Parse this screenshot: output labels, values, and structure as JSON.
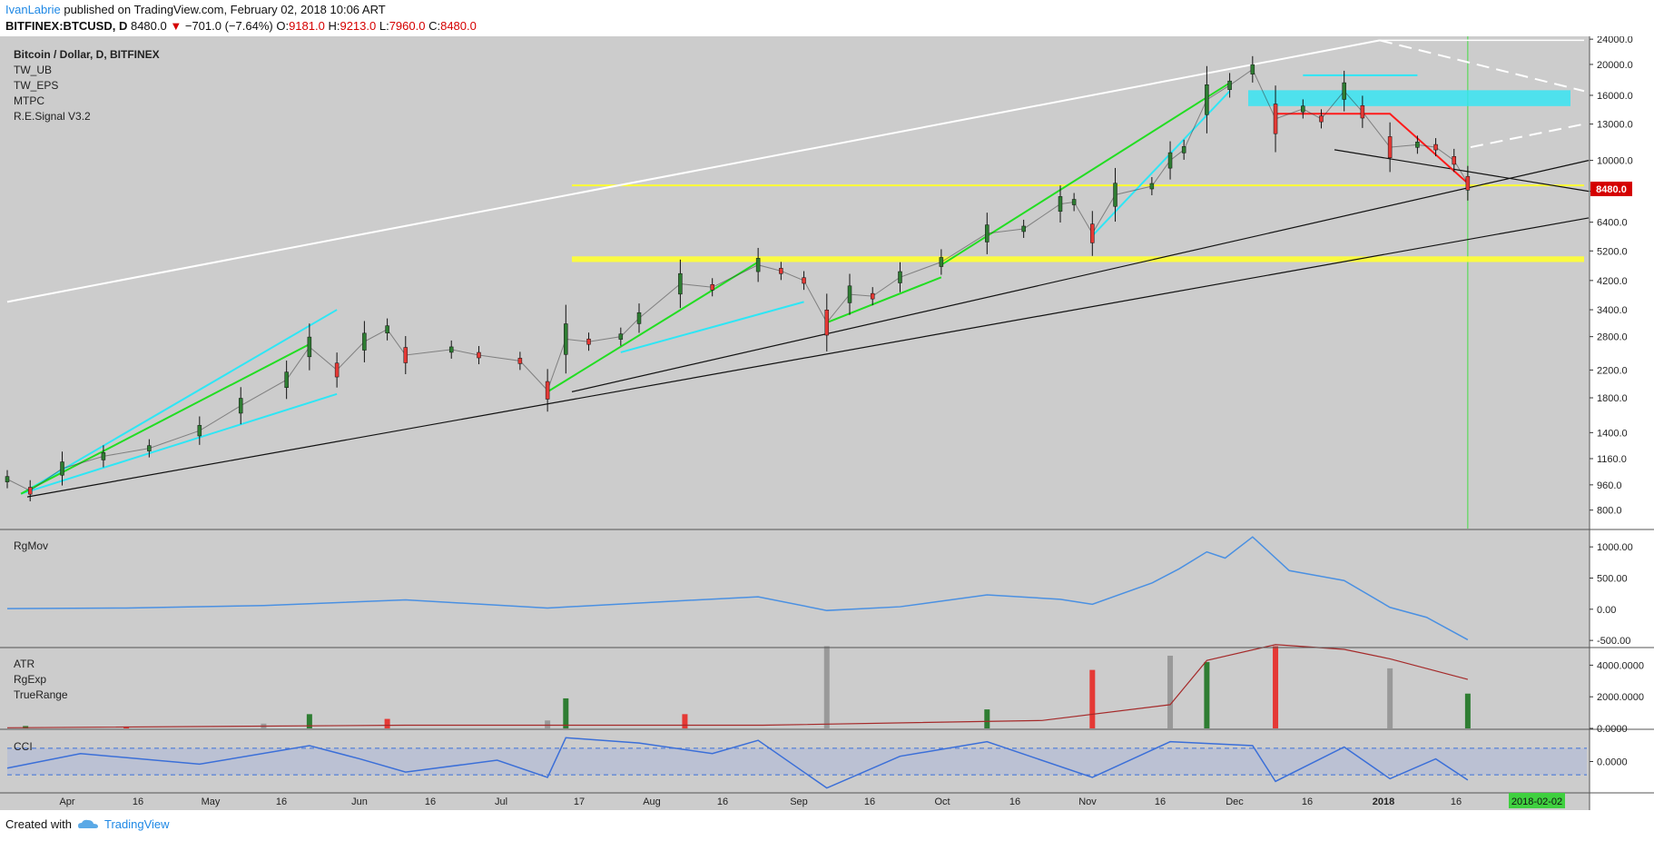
{
  "header": {
    "author": "IvanLabrie",
    "published_text": "published on TradingView.com, February 02, 2018 10:06 ART",
    "symbol": "BITFINEX:BTCUSD, D",
    "last": "8480.0",
    "change": "−701.0 (−7.64%)",
    "o_label": "O:",
    "o_value": "9181.0",
    "h_label": "H:",
    "h_value": "9213.0",
    "l_label": "L:",
    "l_value": "7960.0",
    "c_label": "C:",
    "c_value": "8480.0"
  },
  "legend": {
    "title": "Bitcoin / Dollar, D, BITFINEX",
    "studies": [
      "TW_UB",
      "TW_EPS",
      "MTPC",
      "R.E.Signal V3.2"
    ]
  },
  "price_tag": "8480.0",
  "date_tag": "2018-02-02",
  "footer": {
    "created_with": "Created with",
    "brand": "TradingView"
  },
  "colors": {
    "background": "#cccccc",
    "up": "#2e7d32",
    "down": "#e53935",
    "rgmov": "#4a90e2",
    "cci": "#3b6fd8",
    "rgexp": "#a52a2a",
    "trend_cyan": "#2ee6f5",
    "trend_green": "#22dd22",
    "trend_white": "#ffffff",
    "support_yellow": "#ffff33"
  },
  "chart_data": [
    {
      "type": "candlestick",
      "title": "Bitcoin / Dollar, D, BITFINEX",
      "scale": "log",
      "ylim": [
        700,
        24500
      ],
      "y_ticks": [
        24000,
        20000,
        16000,
        13000,
        10000,
        8000,
        6400,
        5200,
        4200,
        3400,
        2800,
        2200,
        1800,
        1400,
        1160,
        960,
        800
      ],
      "x_tick_labels": [
        "Apr",
        "16",
        "May",
        "16",
        "Jun",
        "16",
        "Jul",
        "17",
        "Aug",
        "16",
        "Sep",
        "16",
        "Oct",
        "16",
        "Nov",
        "16",
        "Dec",
        "16",
        "2018",
        "16"
      ],
      "x_range": [
        "2017-03-20",
        "2018-02-28"
      ],
      "series": [
        {
          "name": "BTCUSD",
          "points": [
            [
              "2017-03-20",
              1000
            ],
            [
              "2017-03-25",
              920
            ],
            [
              "2017-04-01",
              1080
            ],
            [
              "2017-04-10",
              1180
            ],
            [
              "2017-04-20",
              1250
            ],
            [
              "2017-05-01",
              1420
            ],
            [
              "2017-05-10",
              1700
            ],
            [
              "2017-05-20",
              2050
            ],
            [
              "2017-05-25",
              2600
            ],
            [
              "2017-05-31",
              2200
            ],
            [
              "2017-06-06",
              2700
            ],
            [
              "2017-06-11",
              2950
            ],
            [
              "2017-06-15",
              2450
            ],
            [
              "2017-06-25",
              2550
            ],
            [
              "2017-07-01",
              2450
            ],
            [
              "2017-07-10",
              2350
            ],
            [
              "2017-07-16",
              1900
            ],
            [
              "2017-07-20",
              2750
            ],
            [
              "2017-07-25",
              2700
            ],
            [
              "2017-08-01",
              2800
            ],
            [
              "2017-08-05",
              3200
            ],
            [
              "2017-08-14",
              4100
            ],
            [
              "2017-08-21",
              4000
            ],
            [
              "2017-08-31",
              4700
            ],
            [
              "2017-09-05",
              4500
            ],
            [
              "2017-09-10",
              4200
            ],
            [
              "2017-09-15",
              3100
            ],
            [
              "2017-09-20",
              3800
            ],
            [
              "2017-09-25",
              3750
            ],
            [
              "2017-10-01",
              4300
            ],
            [
              "2017-10-10",
              4800
            ],
            [
              "2017-10-20",
              5900
            ],
            [
              "2017-10-28",
              6100
            ],
            [
              "2017-11-05",
              7300
            ],
            [
              "2017-11-08",
              7400
            ],
            [
              "2017-11-12",
              5900
            ],
            [
              "2017-11-17",
              7800
            ],
            [
              "2017-11-25",
              8300
            ],
            [
              "2017-11-29",
              10000
            ],
            [
              "2017-12-02",
              10800
            ],
            [
              "2017-12-07",
              15500
            ],
            [
              "2017-12-12",
              17200
            ],
            [
              "2017-12-17",
              19300
            ],
            [
              "2017-12-22",
              13500
            ],
            [
              "2017-12-28",
              14500
            ],
            [
              "2018-01-01",
              13500
            ],
            [
              "2018-01-06",
              16500
            ],
            [
              "2018-01-10",
              14200
            ],
            [
              "2018-01-16",
              11000
            ],
            [
              "2018-01-22",
              11200
            ],
            [
              "2018-01-26",
              11000
            ],
            [
              "2018-01-30",
              10000
            ],
            [
              "2018-02-02",
              8480
            ]
          ]
        }
      ]
    },
    {
      "type": "line",
      "title": "RgMov",
      "ylim": [
        -600,
        1250
      ],
      "y_ticks": [
        1000,
        500,
        0,
        -500
      ],
      "y_tick_labels": [
        "1000.00",
        "500.00",
        "0.00",
        "-500.00"
      ],
      "series": [
        {
          "name": "RgMov",
          "points": [
            [
              "2017-03-20",
              10
            ],
            [
              "2017-04-15",
              20
            ],
            [
              "2017-05-15",
              60
            ],
            [
              "2017-06-15",
              150
            ],
            [
              "2017-07-16",
              20
            ],
            [
              "2017-08-15",
              140
            ],
            [
              "2017-08-31",
              200
            ],
            [
              "2017-09-15",
              -20
            ],
            [
              "2017-10-01",
              40
            ],
            [
              "2017-10-20",
              230
            ],
            [
              "2017-11-05",
              160
            ],
            [
              "2017-11-12",
              80
            ],
            [
              "2017-11-25",
              420
            ],
            [
              "2017-12-01",
              650
            ],
            [
              "2017-12-07",
              920
            ],
            [
              "2017-12-11",
              820
            ],
            [
              "2017-12-17",
              1160
            ],
            [
              "2017-12-25",
              620
            ],
            [
              "2018-01-06",
              460
            ],
            [
              "2018-01-16",
              30
            ],
            [
              "2018-01-24",
              -130
            ],
            [
              "2018-02-02",
              -490
            ]
          ]
        }
      ]
    },
    {
      "type": "bar",
      "title": "ATR",
      "legend_entries": [
        "ATR",
        "RgExp",
        "TrueRange"
      ],
      "ylim": [
        0,
        5000
      ],
      "y_ticks": [
        4000,
        2000,
        0
      ],
      "y_tick_labels": [
        "4000.0000",
        "2000.0000",
        "0.0000"
      ],
      "series": [
        {
          "name": "TrueRange",
          "points": [
            [
              "2017-03-24",
              150
            ],
            [
              "2017-04-15",
              120
            ],
            [
              "2017-05-15",
              300
            ],
            [
              "2017-05-25",
              900
            ],
            [
              "2017-06-11",
              600
            ],
            [
              "2017-07-16",
              500
            ],
            [
              "2017-07-20",
              1900
            ],
            [
              "2017-08-15",
              900
            ],
            [
              "2017-09-15",
              5200
            ],
            [
              "2017-10-20",
              1200
            ],
            [
              "2017-11-12",
              3700
            ],
            [
              "2017-11-29",
              4600
            ],
            [
              "2017-12-07",
              4200
            ],
            [
              "2017-12-22",
              5200
            ],
            [
              "2018-01-16",
              3800
            ],
            [
              "2018-02-02",
              2200
            ]
          ]
        },
        {
          "name": "RgExp",
          "points": [
            [
              "2017-03-20",
              40
            ],
            [
              "2017-06-15",
              200
            ],
            [
              "2017-09-01",
              200
            ],
            [
              "2017-11-01",
              500
            ],
            [
              "2017-11-29",
              1500
            ],
            [
              "2017-12-07",
              4300
            ],
            [
              "2017-12-22",
              5300
            ],
            [
              "2018-01-06",
              5000
            ],
            [
              "2018-01-16",
              4400
            ],
            [
              "2018-02-02",
              3100
            ]
          ]
        }
      ]
    },
    {
      "type": "line",
      "title": "CCI",
      "ylim": [
        -230,
        230
      ],
      "y_ticks": [
        0
      ],
      "y_tick_labels": [
        "0.0000"
      ],
      "band": [
        -100,
        100
      ],
      "series": [
        {
          "name": "CCI",
          "points": [
            [
              "2017-03-20",
              -50
            ],
            [
              "2017-04-05",
              60
            ],
            [
              "2017-05-01",
              -20
            ],
            [
              "2017-05-25",
              120
            ],
            [
              "2017-06-05",
              20
            ],
            [
              "2017-06-15",
              -80
            ],
            [
              "2017-07-05",
              10
            ],
            [
              "2017-07-16",
              -120
            ],
            [
              "2017-07-20",
              180
            ],
            [
              "2017-08-05",
              140
            ],
            [
              "2017-08-21",
              60
            ],
            [
              "2017-08-31",
              160
            ],
            [
              "2017-09-15",
              -200
            ],
            [
              "2017-10-01",
              40
            ],
            [
              "2017-10-20",
              150
            ],
            [
              "2017-11-12",
              -120
            ],
            [
              "2017-11-29",
              150
            ],
            [
              "2017-12-17",
              120
            ],
            [
              "2017-12-22",
              -150
            ],
            [
              "2018-01-06",
              110
            ],
            [
              "2018-01-16",
              -130
            ],
            [
              "2018-01-26",
              20
            ],
            [
              "2018-02-02",
              -140
            ]
          ]
        }
      ]
    }
  ]
}
